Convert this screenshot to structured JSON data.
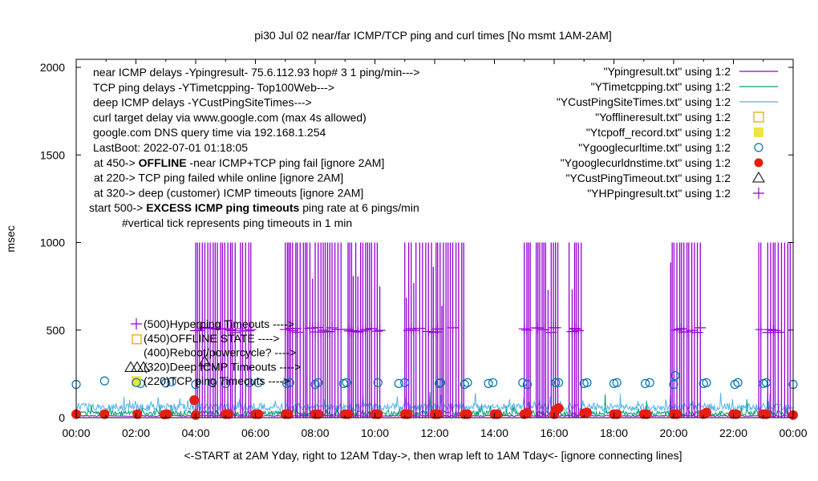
{
  "chart_data": {
    "type": "line",
    "title": "pi30 Jul 02  near/far ICMP/TCP ping and curl times [No msmt 1AM-2AM]",
    "xlabel": "<-START at 2AM Yday, right to 12AM Tday->, then wrap left to 1AM Tday<- [ignore connecting lines]",
    "ylabel": "msec",
    "xlim": [
      0,
      24
    ],
    "ylim": [
      0,
      2000
    ],
    "grid": false,
    "legend_position": "top-right",
    "x_ticks": [
      {
        "value": 0,
        "label": "00:00"
      },
      {
        "value": 2,
        "label": "02:00"
      },
      {
        "value": 4,
        "label": "04:00"
      },
      {
        "value": 6,
        "label": "06:00"
      },
      {
        "value": 8,
        "label": "08:00"
      },
      {
        "value": 10,
        "label": "10:00"
      },
      {
        "value": 12,
        "label": "12:00"
      },
      {
        "value": 14,
        "label": "14:00"
      },
      {
        "value": 16,
        "label": "16:00"
      },
      {
        "value": 18,
        "label": "18:00"
      },
      {
        "value": 20,
        "label": "20:00"
      },
      {
        "value": 22,
        "label": "22:00"
      },
      {
        "value": 24,
        "label": "00:00"
      }
    ],
    "y_ticks": [
      {
        "value": 0,
        "label": "0"
      },
      {
        "value": 500,
        "label": "500"
      },
      {
        "value": 1000,
        "label": "1000"
      },
      {
        "value": 1500,
        "label": "1500"
      },
      {
        "value": 2000,
        "label": "2000"
      }
    ],
    "annotations": [
      {
        "text": "near ICMP delays -Ypingresult- 75.6.112.93 hop# 3 1 ping/min--->"
      },
      {
        "text": "TCP ping delays -YTimetcpping- Top100Web--->"
      },
      {
        "text": "deep ICMP delays -YCustPingSiteTimes--->"
      },
      {
        "text": "curl target delay via www.google.com (max 4s allowed)"
      },
      {
        "text": "google.com DNS query time via 192.168.1.254"
      },
      {
        "text": "LastBoot: 2022-07-01 01:18:05"
      },
      {
        "pre": "at 450->  ",
        "bold": "OFFLINE",
        "post": " -near ICMP+TCP ping fail [ignore 2AM]"
      },
      {
        "text": "at 220-> TCP ping failed while online [ignore 2AM]"
      },
      {
        "text": "at 320-> deep (customer) ICMP timeouts [ignore 2AM]"
      },
      {
        "pre": "start 500->  ",
        "bold": "EXCESS ICMP ping timeouts",
        "post": "  ping rate at 6 pings/min"
      },
      {
        "text": "#vertical tick represents ping timeouts in 1 min"
      }
    ],
    "level_labels": [
      {
        "text": "(500)Hyperping Timeouts ---->",
        "marker": "plus",
        "color": "#9400d3"
      },
      {
        "text": "(450)OFFLINE STATE ---->",
        "marker": "open-square",
        "color": "#e69f00"
      },
      {
        "text": "(400)Reboot/powercycle? ---->",
        "marker": "none",
        "color": "#000000"
      },
      {
        "text": "(320)Deep ICMP Timeouts ---->",
        "marker": "open-triangle",
        "color": "#000000"
      },
      {
        "text": "(220)TCP ping Timeouts ---->",
        "marker": "filled-square",
        "color": "#f0e442"
      }
    ],
    "series": [
      {
        "name": "\"Ypingresult.txt\" using 1:2",
        "style": "line",
        "color": "#9400d3",
        "baseline": 10,
        "jitter": 6
      },
      {
        "name": "\"YTimetcpping.txt\" using 1:2",
        "style": "line",
        "color": "#009e73",
        "baseline": 25,
        "jitter": 30
      },
      {
        "name": "\"YCustPingSiteTimes.txt\" using 1:2",
        "style": "line",
        "color": "#56b4e9",
        "baseline": 60,
        "jitter": 45
      },
      {
        "name": "\"Yofflineresult.txt\" using 1:2",
        "style": "open-square",
        "color": "#e69f00",
        "points": []
      },
      {
        "name": "\"Ytcpoff_record.txt\" using 1:2",
        "style": "filled-square",
        "color": "#f0e442",
        "points": []
      },
      {
        "name": "\"Ygooglecurltime.txt\" using 1:2",
        "style": "open-circle",
        "color": "#0072b2",
        "points": [
          [
            0.0,
            190
          ],
          [
            0.95,
            210
          ],
          [
            2.15,
            195
          ],
          [
            3.0,
            198
          ],
          [
            3.2,
            205
          ],
          [
            4.0,
            190
          ],
          [
            4.55,
            200
          ],
          [
            5.0,
            195
          ],
          [
            5.8,
            200
          ],
          [
            6.1,
            200
          ],
          [
            7.05,
            195
          ],
          [
            7.15,
            200
          ],
          [
            8.0,
            190
          ],
          [
            8.1,
            200
          ],
          [
            8.95,
            195
          ],
          [
            9.05,
            200
          ],
          [
            10.1,
            200
          ],
          [
            10.8,
            195
          ],
          [
            11.0,
            200
          ],
          [
            12.15,
            195
          ],
          [
            12.2,
            200
          ],
          [
            13.0,
            190
          ],
          [
            13.1,
            200
          ],
          [
            13.8,
            195
          ],
          [
            13.95,
            200
          ],
          [
            14.95,
            200
          ],
          [
            15.1,
            190
          ],
          [
            16.05,
            200
          ],
          [
            16.15,
            200
          ],
          [
            17.0,
            195
          ],
          [
            17.1,
            200
          ],
          [
            18.0,
            195
          ],
          [
            18.1,
            200
          ],
          [
            19.05,
            195
          ],
          [
            19.2,
            200
          ],
          [
            20.05,
            240
          ],
          [
            20.0,
            190
          ],
          [
            21.0,
            195
          ],
          [
            21.1,
            200
          ],
          [
            22.05,
            190
          ],
          [
            22.15,
            200
          ],
          [
            23.0,
            195
          ],
          [
            23.1,
            200
          ],
          [
            24.0,
            190
          ]
        ]
      },
      {
        "name": "\"Ygooglecurldnstime.txt\" using 1:2",
        "style": "filled-circle",
        "color": "#e51e10",
        "points": [
          [
            0.0,
            20
          ],
          [
            0.95,
            20
          ],
          [
            2.05,
            20
          ],
          [
            2.95,
            18
          ],
          [
            3.05,
            20
          ],
          [
            4.0,
            15
          ],
          [
            3.95,
            100
          ],
          [
            5.0,
            20
          ],
          [
            5.1,
            20
          ],
          [
            6.0,
            20
          ],
          [
            6.1,
            20
          ],
          [
            7.0,
            20
          ],
          [
            7.1,
            20
          ],
          [
            8.0,
            20
          ],
          [
            8.1,
            20
          ],
          [
            9.0,
            20
          ],
          [
            9.1,
            20
          ],
          [
            10.0,
            20
          ],
          [
            10.1,
            20
          ],
          [
            11.0,
            20
          ],
          [
            11.1,
            20
          ],
          [
            12.0,
            20
          ],
          [
            12.1,
            20
          ],
          [
            13.0,
            20
          ],
          [
            13.1,
            20
          ],
          [
            14.0,
            20
          ],
          [
            14.1,
            20
          ],
          [
            15.0,
            20
          ],
          [
            15.1,
            28
          ],
          [
            16.0,
            20
          ],
          [
            16.05,
            45
          ],
          [
            16.15,
            55
          ],
          [
            17.0,
            25
          ],
          [
            17.1,
            30
          ],
          [
            18.0,
            20
          ],
          [
            18.1,
            20
          ],
          [
            19.0,
            20
          ],
          [
            19.1,
            20
          ],
          [
            20.0,
            20
          ],
          [
            20.1,
            20
          ],
          [
            21.0,
            20
          ],
          [
            21.1,
            30
          ],
          [
            22.0,
            20
          ],
          [
            22.1,
            20
          ],
          [
            23.0,
            20
          ],
          [
            23.1,
            20
          ],
          [
            24.0,
            15
          ]
        ]
      },
      {
        "name": "\"YCustPingTimeout.txt\" using 1:2",
        "style": "open-triangle",
        "color": "#000000",
        "points": [
          [
            4.3,
            320
          ]
        ]
      },
      {
        "name": "\"YHPpingresult.txt\" using 1:2",
        "style": "plus",
        "color": "#9400d3",
        "bursts": [
          [
            4.0,
            5.4
          ],
          [
            5.5,
            5.9
          ],
          [
            7.0,
            8.9
          ],
          [
            9.1,
            10.2
          ],
          [
            11.0,
            11.4
          ],
          [
            11.5,
            13.0
          ],
          [
            15.0,
            15.25
          ],
          [
            15.4,
            16.2
          ],
          [
            16.5,
            17.0
          ],
          [
            19.9,
            20.9
          ],
          [
            22.85,
            23.0
          ],
          [
            23.15,
            24.0
          ]
        ],
        "timeout_level": 1000,
        "plus_level": 500
      }
    ]
  }
}
